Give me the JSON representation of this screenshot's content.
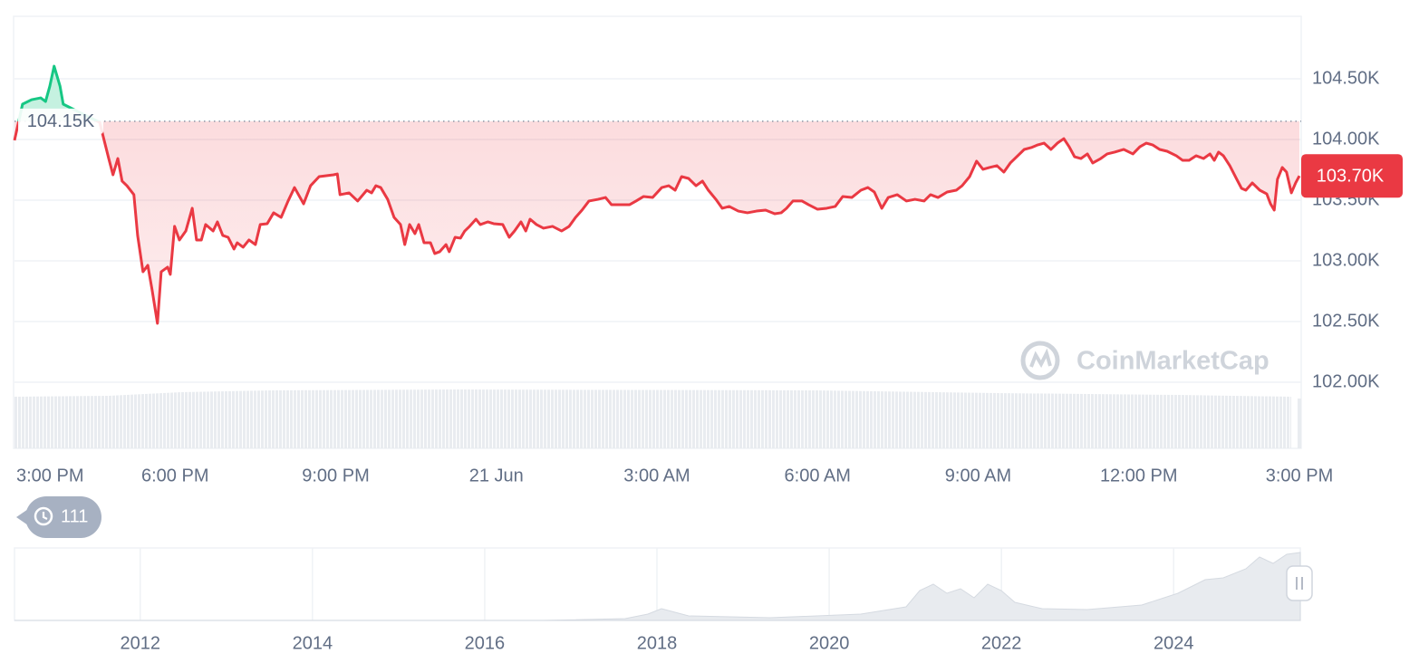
{
  "chart_data": [
    {
      "type": "line",
      "x": [
        0,
        0.15,
        0.32,
        0.49,
        0.58,
        0.66,
        0.74,
        0.85,
        0.91,
        1.25,
        1.59,
        1.76,
        1.84,
        1.93,
        2.01,
        2.1,
        2.23,
        2.3,
        2.4,
        2.49,
        2.57,
        2.67,
        2.74,
        2.86,
        2.91,
        2.99,
        3.08,
        3.2,
        3.32,
        3.4,
        3.49,
        3.57,
        3.71,
        3.79,
        3.89,
        3.99,
        4.1,
        4.16,
        4.27,
        4.38,
        4.5,
        4.59,
        4.72,
        4.84,
        4.98,
        5.11,
        5.23,
        5.4,
        5.53,
        5.69,
        5.96,
        6.03,
        6.08,
        6.25,
        6.41,
        6.58,
        6.67,
        6.75,
        6.84,
        6.97,
        7.09,
        7.21,
        7.29,
        7.38,
        7.48,
        7.55,
        7.65,
        7.77,
        7.85,
        7.94,
        8.06,
        8.12,
        8.23,
        8.33,
        8.41,
        8.5,
        8.62,
        8.7,
        8.84,
        8.95,
        9.12,
        9.24,
        9.34,
        9.46,
        9.55,
        9.63,
        9.75,
        9.88,
        10.05,
        10.22,
        10.36,
        10.48,
        10.6,
        10.73,
        10.9,
        11.04,
        11.15,
        11.32,
        11.49,
        11.61,
        11.75,
        11.92,
        12.09,
        12.22,
        12.34,
        12.46,
        12.59,
        12.73,
        12.85,
        12.96,
        13.1,
        13.22,
        13.35,
        13.52,
        13.69,
        13.86,
        14.03,
        14.2,
        14.32,
        14.42,
        14.54,
        14.71,
        14.83,
        15.0,
        15.17,
        15.33,
        15.47,
        15.64,
        15.81,
        15.94,
        16.06,
        16.2,
        16.32,
        16.49,
        16.66,
        16.82,
        16.99,
        17.11,
        17.25,
        17.42,
        17.59,
        17.7,
        17.84,
        17.97,
        18.09,
        18.21,
        18.35,
        18.48,
        18.6,
        18.72,
        18.86,
        18.99,
        19.11,
        19.23,
        19.36,
        19.48,
        19.6,
        19.7,
        19.8,
        19.92,
        20.04,
        20.14,
        20.29,
        20.41,
        20.55,
        20.72,
        20.89,
        21.02,
        21.14,
        21.26,
        21.39,
        21.53,
        21.7,
        21.82,
        21.94,
        22.07,
        22.21,
        22.33,
        22.41,
        22.49,
        22.58,
        22.7,
        22.83,
        22.92,
        23.0,
        23.12,
        23.26,
        23.39,
        23.46,
        23.53,
        23.59,
        23.68,
        23.76,
        23.85,
        23.93,
        24
      ],
      "values": [
        103.993,
        104.291,
        104.328,
        104.343,
        104.313,
        104.44,
        104.604,
        104.44,
        104.291,
        104.216,
        104.142,
        103.843,
        103.709,
        103.843,
        103.657,
        103.619,
        103.545,
        103.209,
        102.91,
        102.963,
        102.761,
        102.485,
        102.91,
        102.948,
        102.888,
        103.284,
        103.172,
        103.246,
        103.433,
        103.172,
        103.172,
        103.299,
        103.246,
        103.321,
        103.209,
        103.194,
        103.097,
        103.149,
        103.112,
        103.172,
        103.134,
        103.299,
        103.306,
        103.396,
        103.358,
        103.493,
        103.604,
        103.47,
        103.619,
        103.694,
        103.709,
        103.716,
        103.545,
        103.56,
        103.493,
        103.582,
        103.56,
        103.619,
        103.604,
        103.507,
        103.358,
        103.299,
        103.134,
        103.299,
        103.224,
        103.299,
        103.149,
        103.149,
        103.06,
        103.075,
        103.134,
        103.075,
        103.194,
        103.187,
        103.246,
        103.284,
        103.343,
        103.299,
        103.321,
        103.306,
        103.299,
        103.194,
        103.246,
        103.321,
        103.246,
        103.343,
        103.299,
        103.269,
        103.284,
        103.246,
        103.284,
        103.358,
        103.418,
        103.493,
        103.507,
        103.522,
        103.463,
        103.463,
        103.463,
        103.493,
        103.53,
        103.522,
        103.604,
        103.619,
        103.582,
        103.694,
        103.679,
        103.619,
        103.657,
        103.582,
        103.507,
        103.433,
        103.448,
        103.41,
        103.396,
        103.41,
        103.418,
        103.388,
        103.396,
        103.433,
        103.493,
        103.493,
        103.463,
        103.425,
        103.433,
        103.448,
        103.53,
        103.522,
        103.582,
        103.604,
        103.567,
        103.433,
        103.522,
        103.545,
        103.493,
        103.507,
        103.493,
        103.545,
        103.522,
        103.567,
        103.582,
        103.619,
        103.694,
        103.821,
        103.754,
        103.769,
        103.784,
        103.731,
        103.806,
        103.858,
        103.918,
        103.933,
        103.955,
        103.97,
        103.918,
        103.97,
        104.007,
        103.94,
        103.858,
        103.843,
        103.881,
        103.806,
        103.843,
        103.881,
        103.896,
        103.918,
        103.881,
        103.94,
        103.97,
        103.955,
        103.918,
        103.903,
        103.866,
        103.828,
        103.828,
        103.866,
        103.843,
        103.881,
        103.828,
        103.896,
        103.866,
        103.784,
        103.672,
        103.597,
        103.582,
        103.642,
        103.582,
        103.552,
        103.47,
        103.418,
        103.672,
        103.769,
        103.731,
        103.56,
        103.642,
        103.7
      ],
      "color": "#ea3943",
      "color_above_open": "#16c784",
      "xlim": [
        0,
        24
      ],
      "xticks": [
        {
          "value": 0,
          "label": "3:00 PM"
        },
        {
          "value": 3,
          "label": "6:00 PM"
        },
        {
          "value": 6,
          "label": "9:00 PM"
        },
        {
          "value": 9,
          "label": "21 Jun"
        },
        {
          "value": 12,
          "label": "3:00 AM"
        },
        {
          "value": 15,
          "label": "6:00 AM"
        },
        {
          "value": 18,
          "label": "9:00 AM"
        },
        {
          "value": 21,
          "label": "12:00 PM"
        },
        {
          "value": 24,
          "label": "3:00 PM"
        }
      ],
      "ylim": [
        101.455,
        105.015
      ],
      "yticks": [
        {
          "value": 102,
          "label": "102.00K"
        },
        {
          "value": 102.5,
          "label": "102.50K"
        },
        {
          "value": 103,
          "label": "103.00K"
        },
        {
          "value": 103.5,
          "label": "103.50K"
        },
        {
          "value": 104,
          "label": "104.00K"
        },
        {
          "value": 104.5,
          "label": "104.50K"
        }
      ],
      "grid": true,
      "open_price": {
        "value": 104.15,
        "label": "104.15K"
      },
      "current_price": {
        "value": 103.7,
        "label": "103.70K"
      },
      "watermark": "CoinMarketCap",
      "history_badge": "111"
    },
    {
      "type": "area",
      "xlim": [
        2010.54,
        2025.46
      ],
      "xticks": [
        2012,
        2014,
        2016,
        2018,
        2020,
        2022,
        2024
      ],
      "grid": true
    }
  ]
}
